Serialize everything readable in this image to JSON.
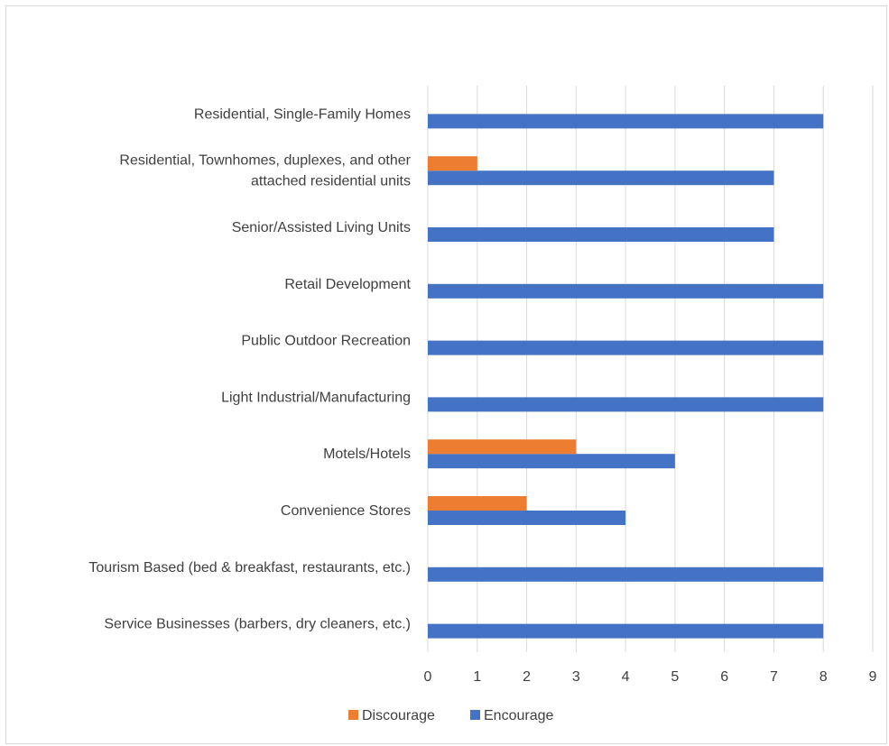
{
  "chart_data": {
    "type": "bar",
    "orientation": "horizontal",
    "categories": [
      "Residential, Single-Family Homes",
      [
        "Residential, Townhomes, duplexes, and other",
        "attached residential units"
      ],
      "Senior/Assisted Living Units",
      "Retail Development",
      "Public Outdoor Recreation",
      "Light Industrial/Manufacturing",
      "Motels/Hotels",
      "Convenience Stores",
      "Tourism Based (bed & breakfast, restaurants, etc.)",
      "Service Businesses (barbers, dry cleaners, etc.)"
    ],
    "series": [
      {
        "name": "Discourage",
        "color": "#ED7D31",
        "values": [
          0,
          1,
          0,
          0,
          0,
          0,
          3,
          2,
          0,
          0
        ]
      },
      {
        "name": "Encourage",
        "color": "#4472C4",
        "values": [
          8,
          7,
          7,
          8,
          8,
          8,
          5,
          4,
          8,
          8
        ]
      }
    ],
    "xlim": [
      0,
      9
    ],
    "xticks": [
      "0",
      "1",
      "2",
      "3",
      "4",
      "5",
      "6",
      "7",
      "8",
      "9"
    ],
    "grid": true,
    "legend_position": "bottom"
  }
}
